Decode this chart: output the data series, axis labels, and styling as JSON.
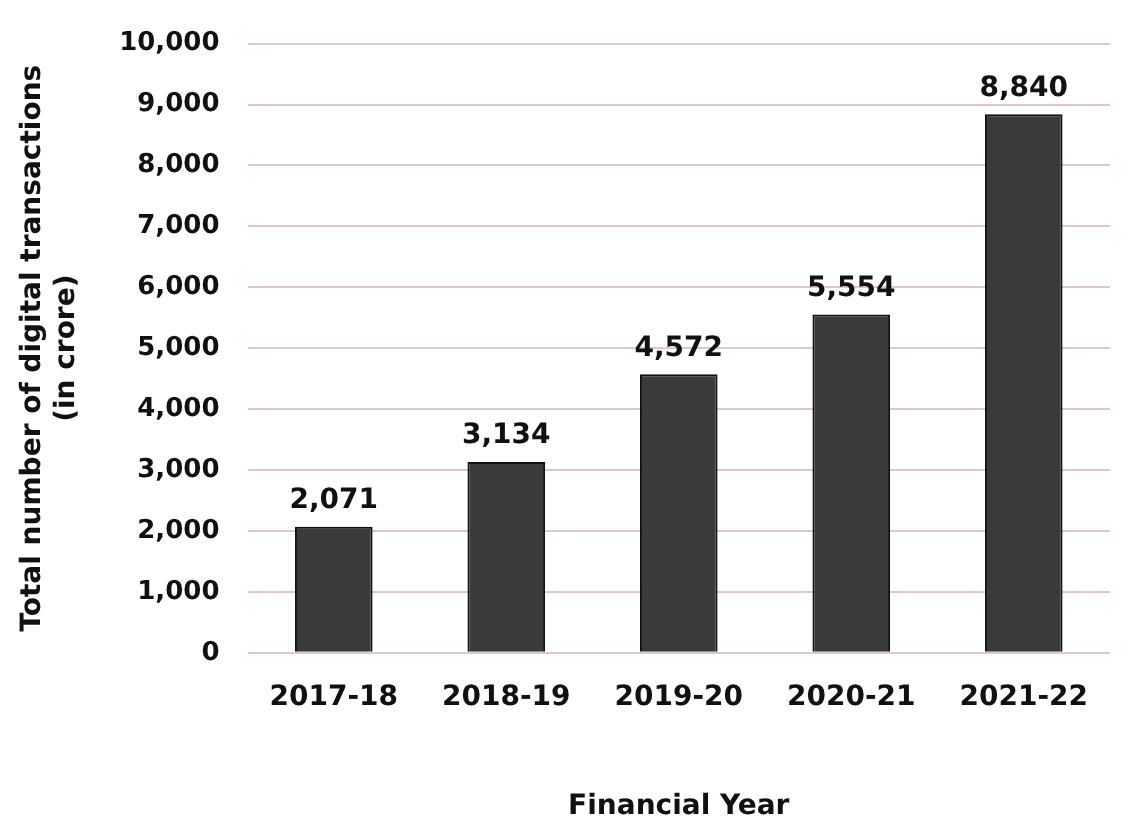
{
  "chart_data": {
    "type": "bar",
    "xlabel": "Financial Year",
    "ylabel": "Total number of digital transactions (in crore)",
    "categories": [
      "2017-18",
      "2018-19",
      "2019-20",
      "2020-21",
      "2021-22"
    ],
    "values": [
      2071,
      3134,
      4572,
      5554,
      8840
    ],
    "value_labels": [
      "2,071",
      "3,134",
      "4,572",
      "5,554",
      "8,840"
    ],
    "color": "#3a3a3a",
    "ylim": [
      0,
      10000
    ],
    "yticks": [
      {
        "value": 0,
        "label": "0"
      },
      {
        "value": 1000,
        "label": "1,000"
      },
      {
        "value": 2000,
        "label": "2,000"
      },
      {
        "value": 3000,
        "label": "3,000"
      },
      {
        "value": 4000,
        "label": "4,000"
      },
      {
        "value": 5000,
        "label": "5,000"
      },
      {
        "value": 6000,
        "label": "6,000"
      },
      {
        "value": 7000,
        "label": "7,000"
      },
      {
        "value": 8000,
        "label": "8,000"
      },
      {
        "value": 9000,
        "label": "9,000"
      },
      {
        "value": 10000,
        "label": "10,000"
      }
    ],
    "grid": "y"
  }
}
